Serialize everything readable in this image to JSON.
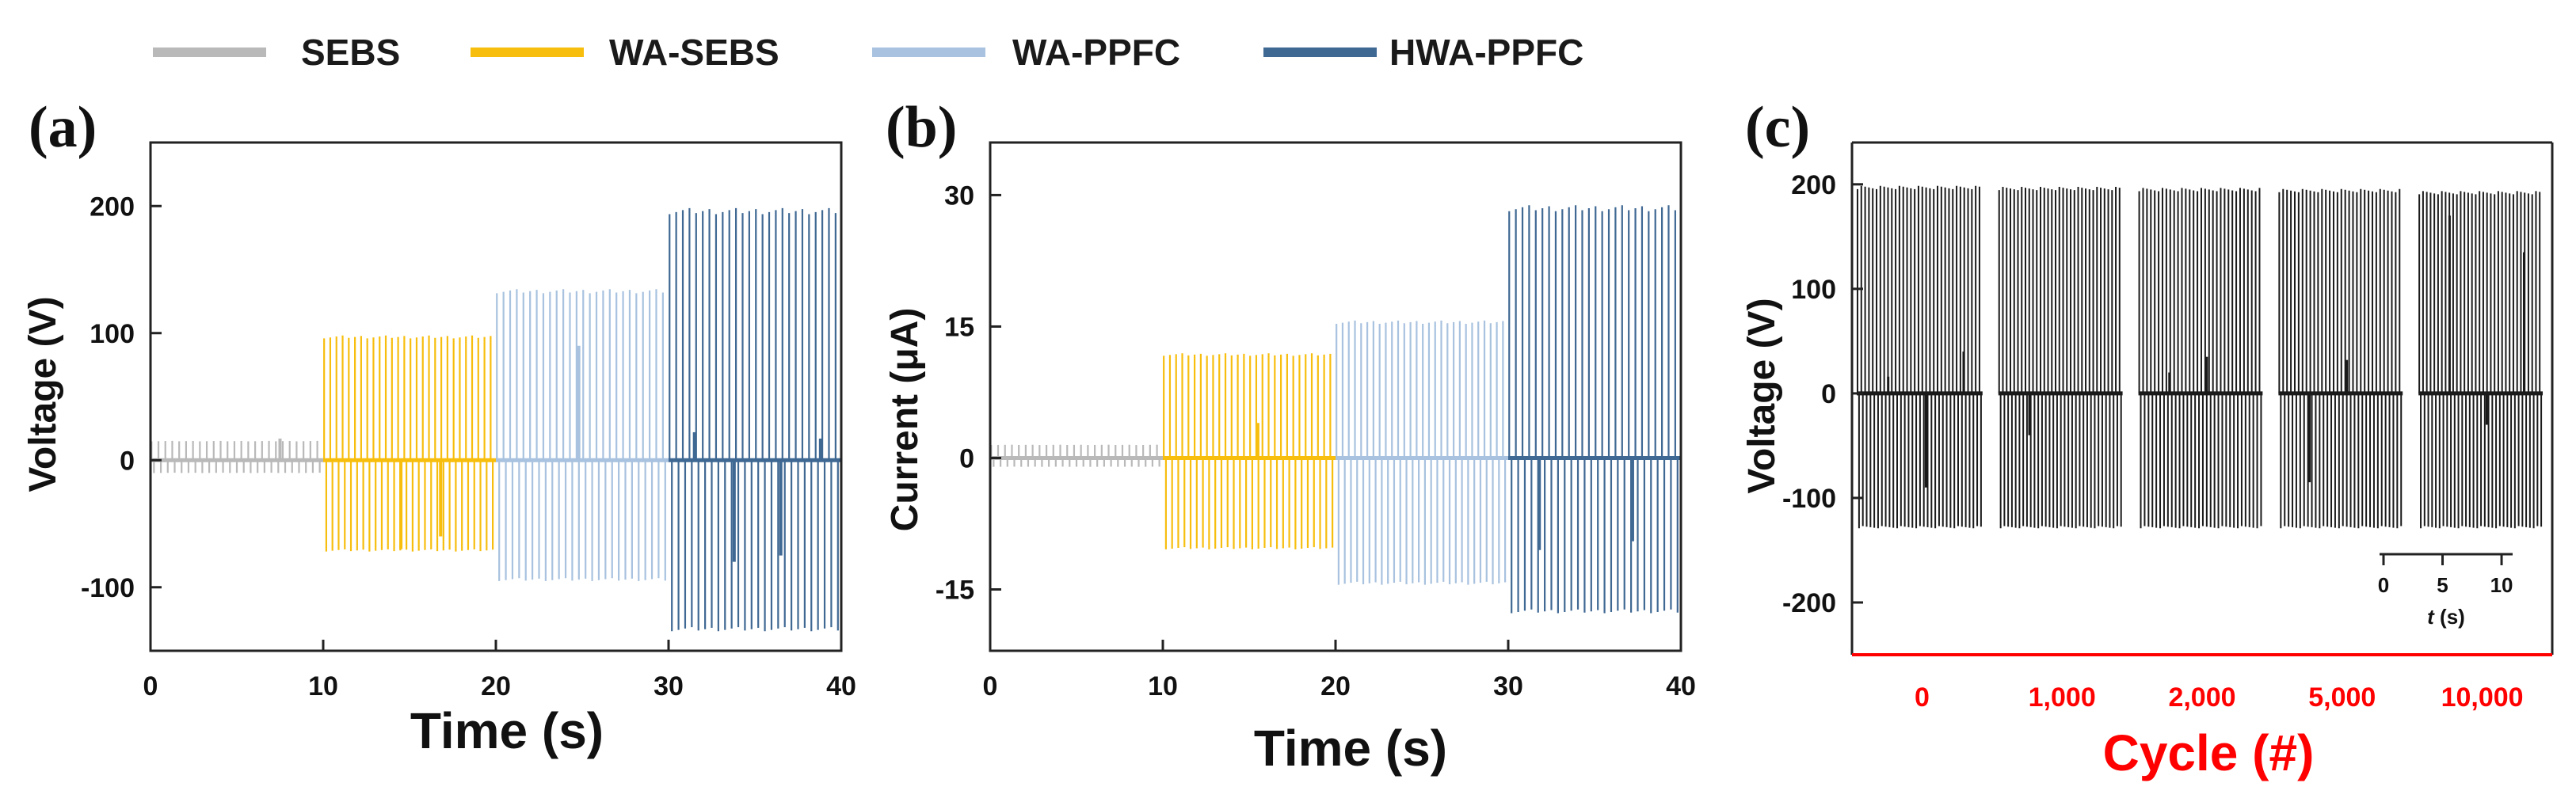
{
  "legend": [
    {
      "label": "SEBS",
      "color": "#b9b9b9"
    },
    {
      "label": "WA-SEBS",
      "color": "#f7be0e"
    },
    {
      "label": "WA-PPFC",
      "color": "#a8c2df"
    },
    {
      "label": "HWA-PPFC",
      "color": "#3f6893"
    }
  ],
  "chart_data": [
    {
      "type": "line",
      "panel": "(a)",
      "xlabel": "Time (s)",
      "ylabel": "Voltage (V)",
      "xlim": [
        0,
        40
      ],
      "ylim": [
        -150,
        250
      ],
      "xticks": [
        0,
        10,
        20,
        30,
        40
      ],
      "yticks": [
        -100,
        0,
        100,
        200
      ],
      "ytick_labels": [
        "-100",
        "0",
        "100",
        "200"
      ],
      "series": [
        {
          "name": "SEBS",
          "x_range": [
            0,
            10
          ],
          "peak_pos": 15,
          "peak_neg": -10,
          "pulses": 25,
          "spikes": [
            {
              "x": 7.5,
              "y": 17
            }
          ]
        },
        {
          "name": "WA-SEBS",
          "x_range": [
            10,
            20
          ],
          "peak_pos": 97,
          "peak_neg": -71,
          "pulses": 28,
          "spikes": [
            {
              "x": 14.5,
              "y": -70
            },
            {
              "x": 16.8,
              "y": -60
            }
          ]
        },
        {
          "name": "WA-PPFC",
          "x_range": [
            20,
            30
          ],
          "peak_pos": 133,
          "peak_neg": -94,
          "pulses": 26,
          "spikes": [
            {
              "x": 24.8,
              "y": 90
            }
          ]
        },
        {
          "name": "HWA-PPFC",
          "x_range": [
            30,
            40
          ],
          "peak_pos": 196,
          "peak_neg": -133,
          "pulses": 26,
          "spikes": [
            {
              "x": 31.5,
              "y": 22
            },
            {
              "x": 33.8,
              "y": -80
            },
            {
              "x": 36.5,
              "y": -75
            },
            {
              "x": 38.8,
              "y": 17
            }
          ]
        }
      ]
    },
    {
      "type": "line",
      "panel": "(b)",
      "xlabel": "Time (s)",
      "ylabel": "Current (μA)",
      "xlim": [
        0,
        40
      ],
      "ylim": [
        -22,
        36
      ],
      "xticks": [
        0,
        10,
        20,
        30,
        40
      ],
      "yticks": [
        -15,
        0,
        15,
        30
      ],
      "ytick_labels": [
        "-15",
        "0",
        "15",
        "30"
      ],
      "series": [
        {
          "name": "SEBS",
          "x_range": [
            0,
            10
          ],
          "peak_pos": 1.5,
          "peak_neg": -1.0,
          "pulses": 25,
          "spikes": []
        },
        {
          "name": "WA-SEBS",
          "x_range": [
            10,
            20
          ],
          "peak_pos": 11.8,
          "peak_neg": -10.3,
          "pulses": 28,
          "spikes": [
            {
              "x": 15.5,
              "y": 4
            }
          ]
        },
        {
          "name": "WA-PPFC",
          "x_range": [
            20,
            30
          ],
          "peak_pos": 15.5,
          "peak_neg": -14.3,
          "pulses": 28,
          "spikes": []
        },
        {
          "name": "HWA-PPFC",
          "x_range": [
            30,
            40
          ],
          "peak_pos": 28.5,
          "peak_neg": -17.5,
          "pulses": 26,
          "spikes": [
            {
              "x": 31.8,
              "y": -10.5
            },
            {
              "x": 37.2,
              "y": -9.5
            }
          ]
        }
      ]
    },
    {
      "type": "line",
      "panel": "(c)",
      "xlabel": "Cycle (#)",
      "ylabel": "Voltage (V)",
      "ylim": [
        -250,
        240
      ],
      "yticks": [
        -200,
        -100,
        0,
        100,
        200
      ],
      "ytick_labels": [
        "-200",
        "-100",
        "0",
        "100",
        "200"
      ],
      "categories": [
        "0",
        "1,000",
        "2,000",
        "5,000",
        "10,000"
      ],
      "series": [
        {
          "name": "0",
          "peak_pos": 197,
          "peak_neg": -128,
          "pulses": 33,
          "spikes": [
            {
              "y": 16
            },
            {
              "y": -90
            },
            {
              "y": 40
            }
          ]
        },
        {
          "name": "1,000",
          "peak_pos": 196,
          "peak_neg": -128,
          "pulses": 33,
          "spikes": [
            {
              "y": -40
            }
          ]
        },
        {
          "name": "2,000",
          "peak_pos": 195,
          "peak_neg": -128,
          "pulses": 32,
          "spikes": [
            {
              "y": 20
            },
            {
              "y": 35
            }
          ]
        },
        {
          "name": "5,000",
          "peak_pos": 194,
          "peak_neg": -128,
          "pulses": 32,
          "spikes": [
            {
              "y": -85
            },
            {
              "y": 32
            }
          ]
        },
        {
          "name": "10,000",
          "peak_pos": 192,
          "peak_neg": -128,
          "pulses": 33,
          "spikes": [
            {
              "y": 170
            },
            {
              "y": -30
            },
            {
              "y": 135
            }
          ]
        }
      ],
      "color": "#1a1a1a",
      "category_color": "#ff0000",
      "inset": {
        "xlabel_italic": "t",
        "xlabel_rest": " (s)",
        "xticks": [
          0,
          5,
          10
        ],
        "xtick_labels": [
          "0",
          "5",
          "10"
        ]
      }
    }
  ]
}
